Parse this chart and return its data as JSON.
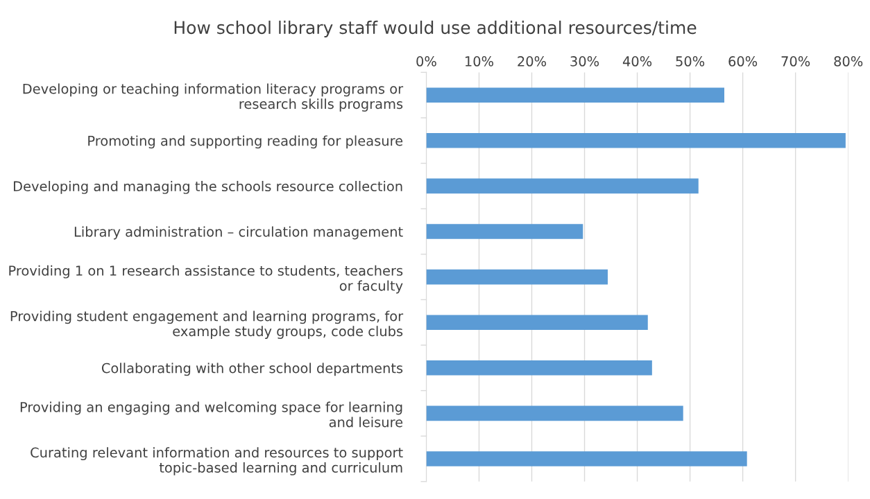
{
  "chart_data": {
    "type": "bar",
    "orientation": "horizontal",
    "title": "How school library staff would use additional resources/time",
    "categories": [
      "Developing or teaching information literacy programs or research skills programs",
      "Promoting and supporting reading for pleasure",
      "Developing and managing the schools resource collection",
      "Library administration – circulation management",
      "Providing 1 on 1 research assistance to students, teachers or faculty",
      "Providing student engagement and learning programs, for example study groups, code clubs",
      "Collaborating with other school departments",
      "Providing an engaging and welcoming space for learning and leisure",
      "Curating relevant information and resources to support topic-based learning and curriculum"
    ],
    "values": [
      56.5,
      79.5,
      51.6,
      29.7,
      34.4,
      42,
      42.8,
      48.7,
      60.8
    ],
    "color": "#5b9bd5",
    "xlim": [
      0,
      80
    ],
    "xticks": [
      {
        "value": 0,
        "label": "0%"
      },
      {
        "value": 10,
        "label": "10%"
      },
      {
        "value": 20,
        "label": "20%"
      },
      {
        "value": 30,
        "label": "30%"
      },
      {
        "value": 40,
        "label": "40%"
      },
      {
        "value": 50,
        "label": "50%"
      },
      {
        "value": 60,
        "label": "60%"
      },
      {
        "value": 70,
        "label": "70%"
      },
      {
        "value": 80,
        "label": "80%"
      }
    ],
    "grid": "x"
  }
}
